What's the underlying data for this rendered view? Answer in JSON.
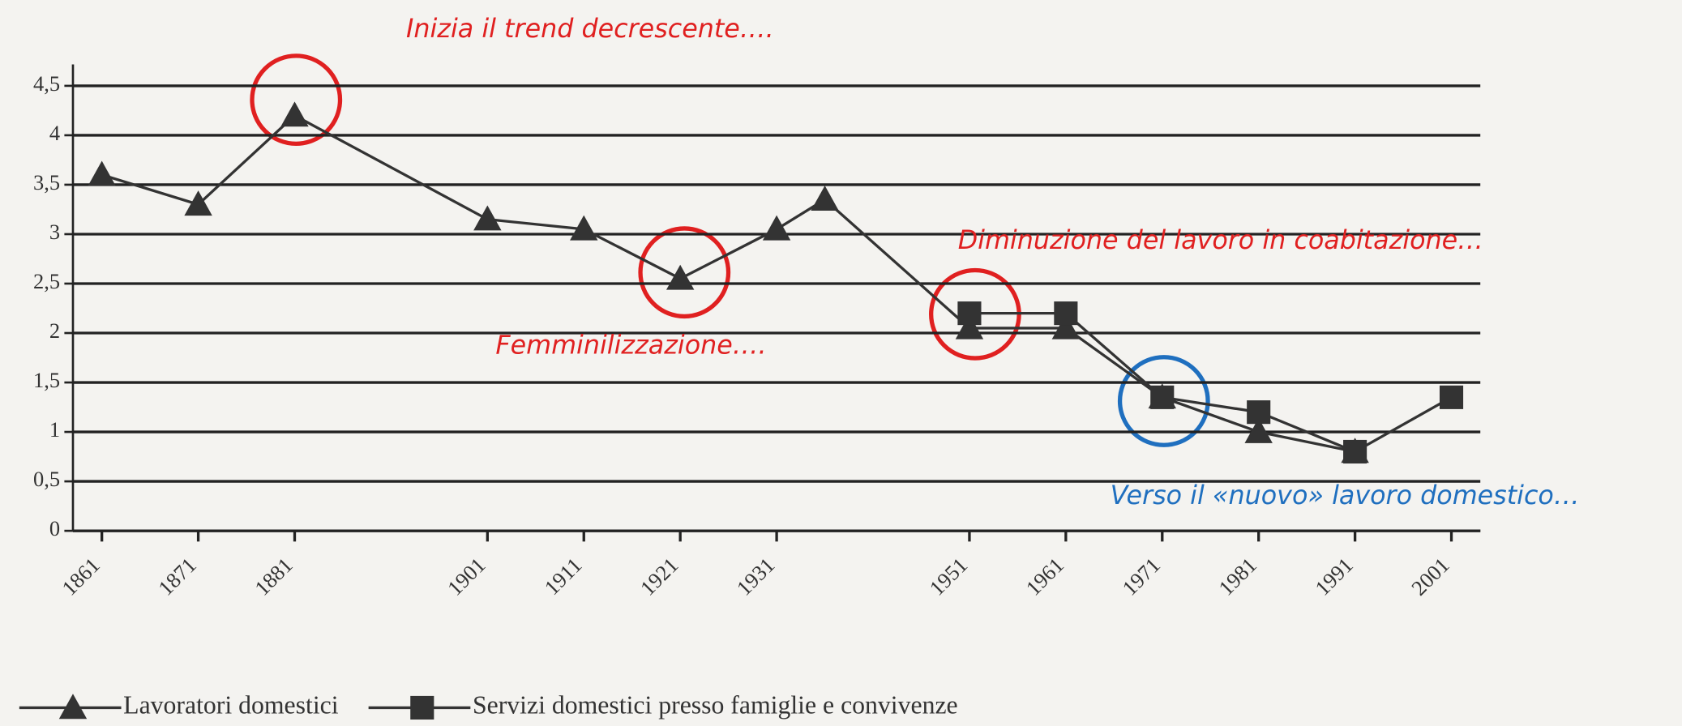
{
  "chart_data": {
    "type": "line",
    "x": [
      1861,
      1871,
      1881,
      1901,
      1911,
      1921,
      1931,
      1936,
      1951,
      1961,
      1971,
      1981,
      1991,
      2001
    ],
    "series": [
      {
        "name": "Lavoratori domestici",
        "color": "#333333",
        "marker": "triangle",
        "values": [
          3.6,
          3.3,
          4.2,
          3.15,
          3.05,
          2.55,
          3.05,
          3.35,
          2.05,
          2.05,
          1.35,
          1.0,
          0.8,
          null
        ]
      },
      {
        "name": "Servizi domestici presso famiglie e convivenze",
        "color": "#333333",
        "marker": "square",
        "values": [
          null,
          null,
          null,
          null,
          null,
          null,
          null,
          null,
          2.2,
          2.2,
          1.35,
          1.2,
          0.8,
          1.35
        ]
      }
    ],
    "xlim": [
      1858,
      2004
    ],
    "xticks": [
      1861,
      1871,
      1881,
      1901,
      1911,
      1921,
      1931,
      1951,
      1961,
      1971,
      1981,
      1991,
      2001
    ],
    "ylim": [
      0,
      4.5
    ],
    "yticks": [
      0,
      {
        "value": 0.5,
        "label": "0,5"
      },
      1,
      {
        "value": 1.5,
        "label": "1,5"
      },
      2,
      {
        "value": 2.5,
        "label": "2,5"
      },
      3,
      {
        "value": 3.5,
        "label": "3,5"
      },
      4,
      {
        "value": 4.5,
        "label": "4,5"
      }
    ],
    "grid": true,
    "legend": "bottom",
    "annotations": [
      {
        "text": "Inizia il trend decrescente….",
        "color": "#e02020"
      },
      {
        "text": "Diminuzione del lavoro in coabitazione…",
        "color": "#e02020"
      },
      {
        "text": "Femminilizzazione….",
        "color": "#e02020"
      },
      {
        "text": "Verso il «nuovo» lavoro domestico…",
        "color": "#1f6fbf"
      }
    ]
  }
}
